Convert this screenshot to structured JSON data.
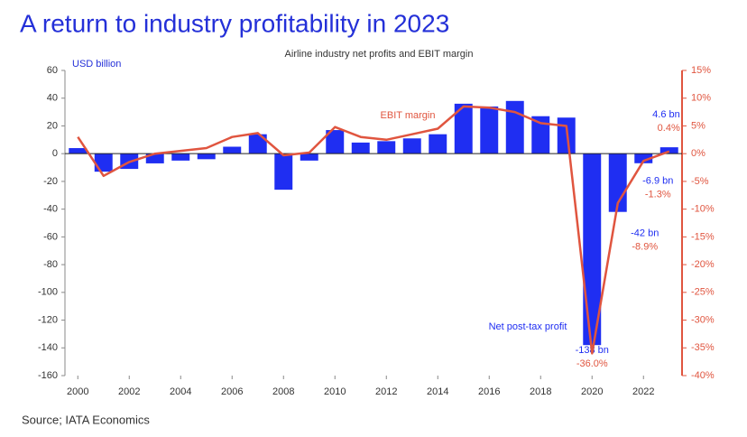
{
  "chart_data": {
    "type": "combo",
    "title": "A return to industry profitability in 2023",
    "subtitle": "Airline industry net profits and EBIT margin",
    "y_label": "USD billion",
    "source": "Source; IATA Economics",
    "x": [
      2000,
      2001,
      2002,
      2003,
      2004,
      2005,
      2006,
      2007,
      2008,
      2009,
      2010,
      2011,
      2012,
      2013,
      2014,
      2015,
      2016,
      2017,
      2018,
      2019,
      2020,
      2021,
      2022,
      2023
    ],
    "xlim": [
      1999.5,
      2023.5
    ],
    "xticks": [
      2000,
      2002,
      2004,
      2006,
      2008,
      2010,
      2012,
      2014,
      2016,
      2018,
      2020,
      2022
    ],
    "ylim": [
      -160,
      60
    ],
    "yticks": [
      -160,
      -140,
      -120,
      -100,
      -80,
      -60,
      -40,
      -20,
      0,
      20,
      40,
      60
    ],
    "y2lim": [
      -40,
      15
    ],
    "y2ticks": [
      {
        "value": -40,
        "label": "-40%"
      },
      {
        "value": -35,
        "label": "-35%"
      },
      {
        "value": -30,
        "label": "-30%"
      },
      {
        "value": -25,
        "label": "-25%"
      },
      {
        "value": -20,
        "label": "-20%"
      },
      {
        "value": -15,
        "label": "-15%"
      },
      {
        "value": -10,
        "label": "-10%"
      },
      {
        "value": -5,
        "label": "-5%"
      },
      {
        "value": 0,
        "label": "0%"
      },
      {
        "value": 5,
        "label": "5%"
      },
      {
        "value": 10,
        "label": "10%"
      },
      {
        "value": 15,
        "label": "15%"
      }
    ],
    "series": [
      {
        "name": "Net post-tax profit",
        "type": "bar",
        "color": "#1f2ef2",
        "values": [
          4,
          -13,
          -11,
          -7,
          -5,
          -4,
          5,
          14,
          -26,
          -5,
          17,
          8,
          9,
          11,
          14,
          36,
          34,
          38,
          27,
          26,
          -138,
          -42,
          -6.9,
          4.6
        ],
        "value_labels": [
          null,
          null,
          null,
          null,
          null,
          null,
          null,
          null,
          null,
          null,
          null,
          null,
          null,
          null,
          null,
          null,
          null,
          null,
          null,
          null,
          "-138 bn",
          "-42 bn",
          "-6.9 bn",
          "4.6 bn"
        ]
      },
      {
        "name": "EBIT margin",
        "type": "line",
        "axis": "y2",
        "color": "#e0553f",
        "values": [
          3.0,
          -4,
          -1.5,
          0,
          0.5,
          1,
          3,
          3.7,
          -0.3,
          0.2,
          4.8,
          3,
          2.5,
          3.5,
          4.5,
          8.5,
          8.3,
          7.5,
          5.5,
          5,
          -36.0,
          -8.9,
          -1.3,
          0.4
        ],
        "value_labels": [
          null,
          null,
          null,
          null,
          null,
          null,
          null,
          null,
          null,
          null,
          null,
          null,
          null,
          null,
          null,
          null,
          null,
          null,
          null,
          null,
          "-36.0%",
          "-8.9%",
          "-1.3%",
          "0.4%"
        ]
      }
    ]
  }
}
